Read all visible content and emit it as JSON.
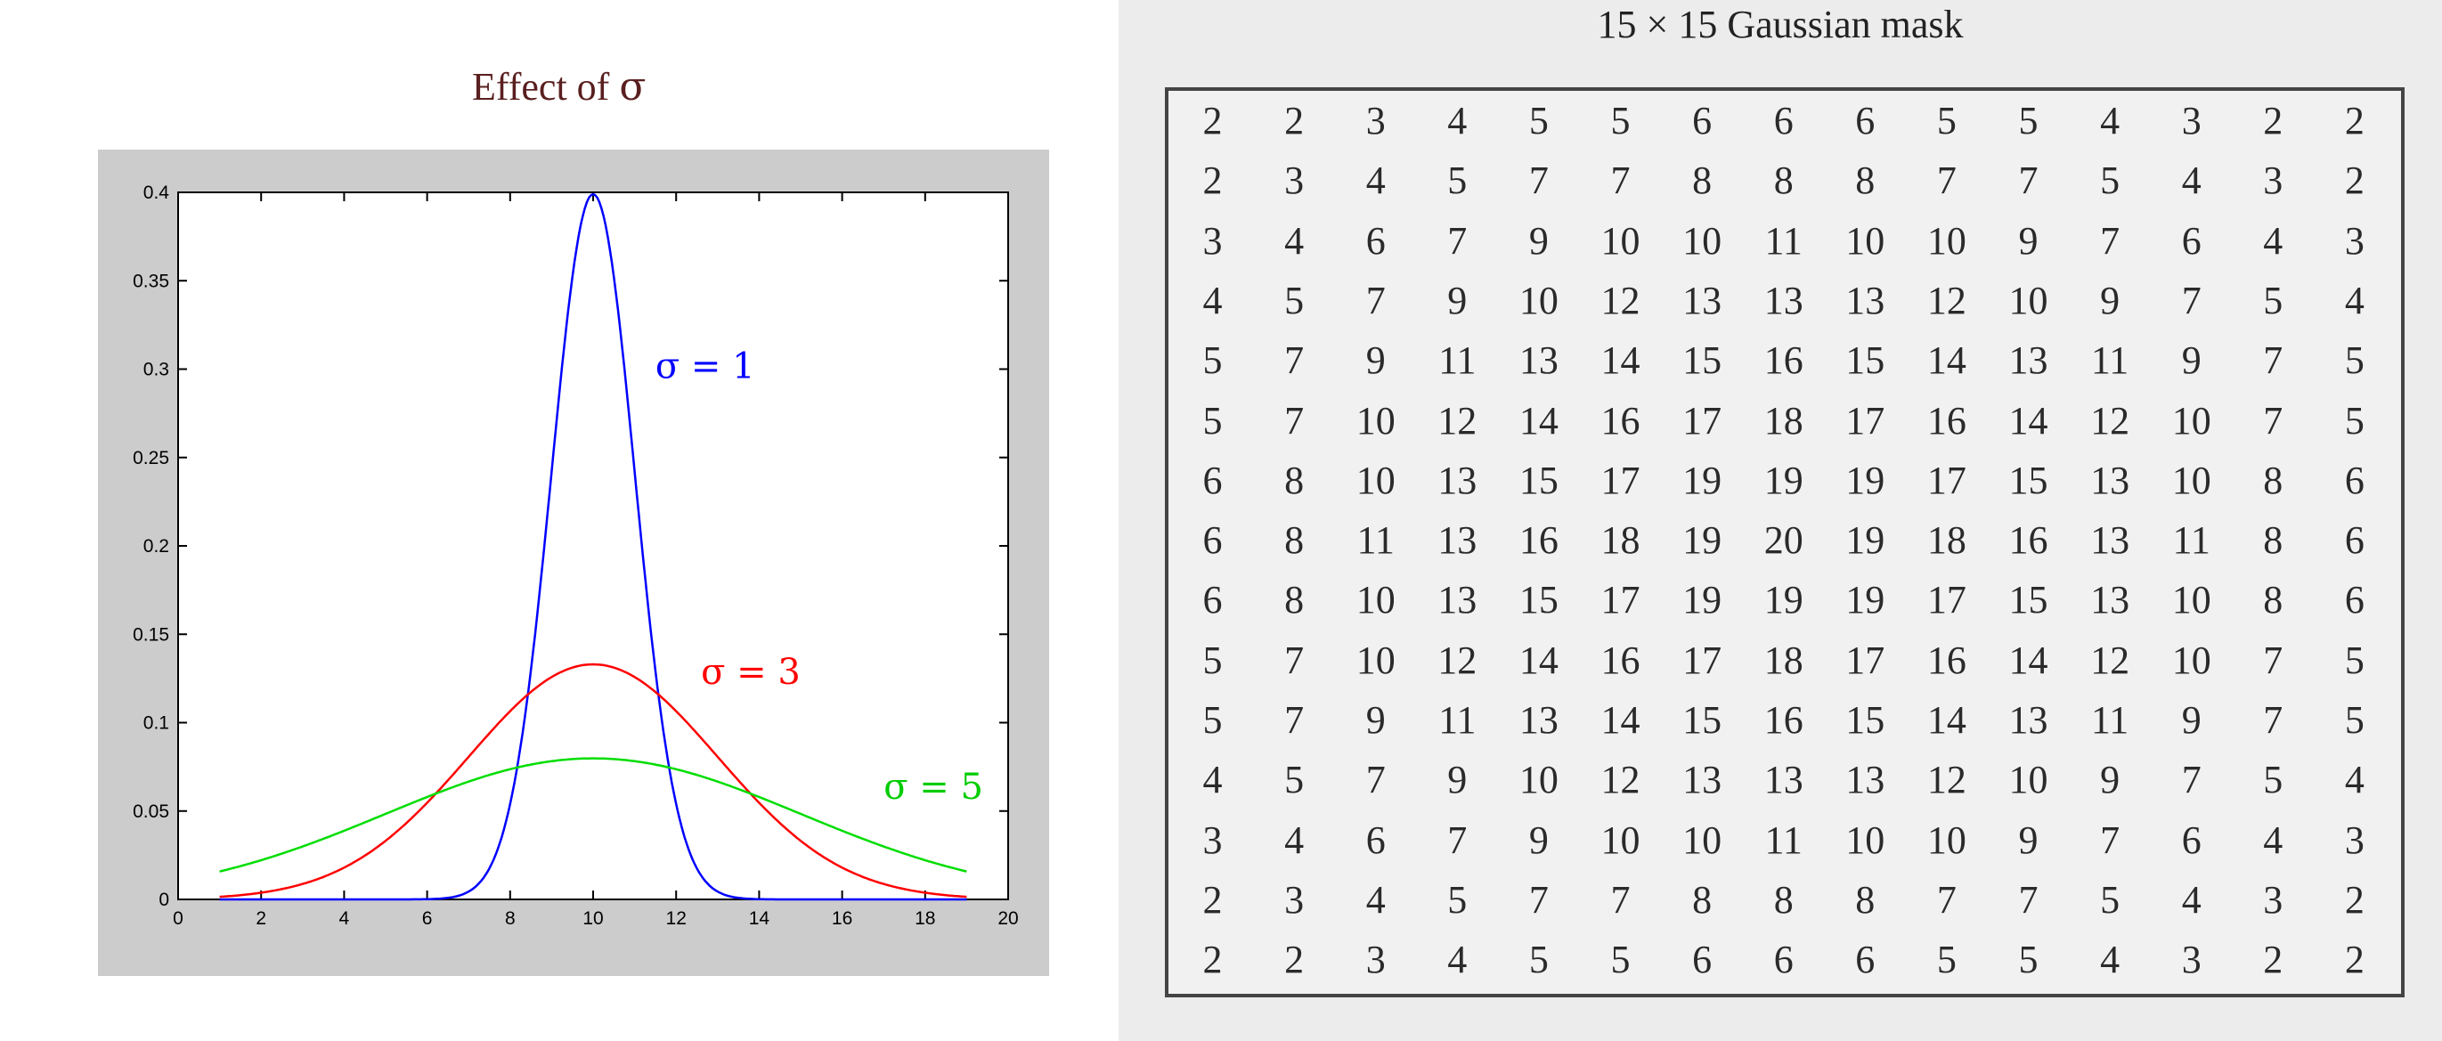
{
  "left_title_prefix": "Effect of ",
  "left_title_symbol": "σ",
  "right_title": "15 × 15 Gaussian mask",
  "chart_data": {
    "type": "line",
    "title": "Effect of σ",
    "xlim": [
      0,
      20
    ],
    "ylim": [
      0,
      0.4
    ],
    "xticks": [
      0,
      2,
      4,
      6,
      8,
      10,
      12,
      14,
      16,
      18,
      20
    ],
    "xtick_labels": [
      "0",
      "2",
      "4",
      "6",
      "8",
      "10",
      "12",
      "14",
      "16",
      "18",
      "20"
    ],
    "yticks": [
      0,
      0.05,
      0.1,
      0.15,
      0.2,
      0.25,
      0.3,
      0.35,
      0.4
    ],
    "ytick_labels": [
      "0",
      "0.05",
      "0.1",
      "0.15",
      "0.2",
      "0.25",
      "0.3",
      "0.35",
      "0.4"
    ],
    "x": [
      1,
      2,
      3,
      4,
      5,
      6,
      7,
      8,
      9,
      10,
      11,
      12,
      13,
      14,
      15,
      16,
      17,
      18,
      19
    ],
    "series": [
      {
        "name": "σ = 1",
        "color": "#0000ff",
        "mu": 10,
        "sigma": 1,
        "values": [
          0,
          0,
          0,
          0,
          0,
          0.0,
          0.0044,
          0.054,
          0.242,
          0.399,
          0.242,
          0.054,
          0.0044,
          0.0001,
          0,
          0,
          0,
          0,
          0
        ]
      },
      {
        "name": "σ = 3",
        "color": "#ff0000",
        "mu": 10,
        "sigma": 3,
        "values": [
          0.0015,
          0.0038,
          0.0087,
          0.018,
          0.033,
          0.055,
          0.081,
          0.106,
          0.126,
          0.133,
          0.126,
          0.106,
          0.081,
          0.055,
          0.033,
          0.018,
          0.0087,
          0.0038,
          0.0015
        ]
      },
      {
        "name": "σ = 5",
        "color": "#00dd00",
        "mu": 10,
        "sigma": 5,
        "values": [
          0.0159,
          0.022,
          0.0298,
          0.0388,
          0.0484,
          0.0579,
          0.0666,
          0.0737,
          0.0782,
          0.0798,
          0.0782,
          0.0737,
          0.0666,
          0.0579,
          0.0484,
          0.0388,
          0.0298,
          0.022,
          0.0159
        ]
      }
    ],
    "annotations": [
      {
        "text": "σ = 1",
        "x": 11.5,
        "y": 0.295,
        "color": "#0000ff"
      },
      {
        "text": "σ = 3",
        "x": 12.6,
        "y": 0.122,
        "color": "#ff0000"
      },
      {
        "text": "σ = 5",
        "x": 17.0,
        "y": 0.057,
        "color": "#00cc00"
      }
    ],
    "grid": false
  },
  "mask": [
    [
      2,
      2,
      3,
      4,
      5,
      5,
      6,
      6,
      6,
      5,
      5,
      4,
      3,
      2,
      2
    ],
    [
      2,
      3,
      4,
      5,
      7,
      7,
      8,
      8,
      8,
      7,
      7,
      5,
      4,
      3,
      2
    ],
    [
      3,
      4,
      6,
      7,
      9,
      10,
      10,
      11,
      10,
      10,
      9,
      7,
      6,
      4,
      3
    ],
    [
      4,
      5,
      7,
      9,
      10,
      12,
      13,
      13,
      13,
      12,
      10,
      9,
      7,
      5,
      4
    ],
    [
      5,
      7,
      9,
      11,
      13,
      14,
      15,
      16,
      15,
      14,
      13,
      11,
      9,
      7,
      5
    ],
    [
      5,
      7,
      10,
      12,
      14,
      16,
      17,
      18,
      17,
      16,
      14,
      12,
      10,
      7,
      5
    ],
    [
      6,
      8,
      10,
      13,
      15,
      17,
      19,
      19,
      19,
      17,
      15,
      13,
      10,
      8,
      6
    ],
    [
      6,
      8,
      11,
      13,
      16,
      18,
      19,
      20,
      19,
      18,
      16,
      13,
      11,
      8,
      6
    ],
    [
      6,
      8,
      10,
      13,
      15,
      17,
      19,
      19,
      19,
      17,
      15,
      13,
      10,
      8,
      6
    ],
    [
      5,
      7,
      10,
      12,
      14,
      16,
      17,
      18,
      17,
      16,
      14,
      12,
      10,
      7,
      5
    ],
    [
      5,
      7,
      9,
      11,
      13,
      14,
      15,
      16,
      15,
      14,
      13,
      11,
      9,
      7,
      5
    ],
    [
      4,
      5,
      7,
      9,
      10,
      12,
      13,
      13,
      13,
      12,
      10,
      9,
      7,
      5,
      4
    ],
    [
      3,
      4,
      6,
      7,
      9,
      10,
      10,
      11,
      10,
      10,
      9,
      7,
      6,
      4,
      3
    ],
    [
      2,
      3,
      4,
      5,
      7,
      7,
      8,
      8,
      8,
      7,
      7,
      5,
      4,
      3,
      2
    ],
    [
      2,
      2,
      3,
      4,
      5,
      5,
      6,
      6,
      6,
      5,
      5,
      4,
      3,
      2,
      2
    ]
  ]
}
